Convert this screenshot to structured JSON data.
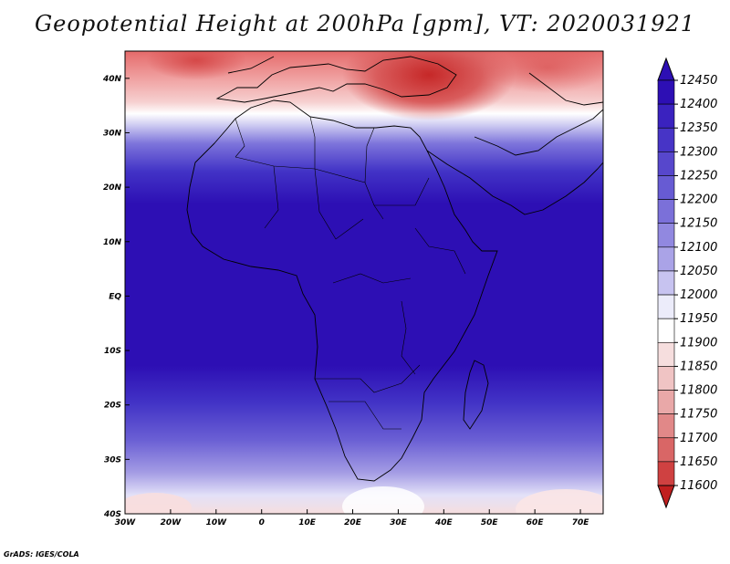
{
  "title": "Geopotential Height at 200hPa [gpm], VT: 2020031921",
  "footer": "GrADS: IGES/COLA",
  "map": {
    "region": "Africa",
    "lon_range": [
      -30,
      75
    ],
    "lat_range": [
      -40,
      45
    ],
    "lon_ticks": [
      "30W",
      "20W",
      "10W",
      "0",
      "10E",
      "20E",
      "30E",
      "40E",
      "50E",
      "60E",
      "70E"
    ],
    "lat_ticks": [
      "40N",
      "30N",
      "20N",
      "10N",
      "EQ",
      "10S",
      "20S",
      "30S",
      "40S"
    ]
  },
  "colorbar": {
    "levels": [
      "12450",
      "12400",
      "12350",
      "12300",
      "12250",
      "12200",
      "12150",
      "12100",
      "12050",
      "12000",
      "11950",
      "11900",
      "11850",
      "11800",
      "11750",
      "11700",
      "11650",
      "11600"
    ],
    "colors": [
      "#2d0fb4",
      "#2d0fb4",
      "#3a22bf",
      "#4734c6",
      "#5747cc",
      "#675bd3",
      "#7b70d9",
      "#9188e0",
      "#aaa3e7",
      "#c7c3f0",
      "#ececfa",
      "#ffffff",
      "#f6dede",
      "#f0c4c4",
      "#e9a8a8",
      "#e18888",
      "#d96666",
      "#cf4141",
      "#c01f1f"
    ]
  }
}
